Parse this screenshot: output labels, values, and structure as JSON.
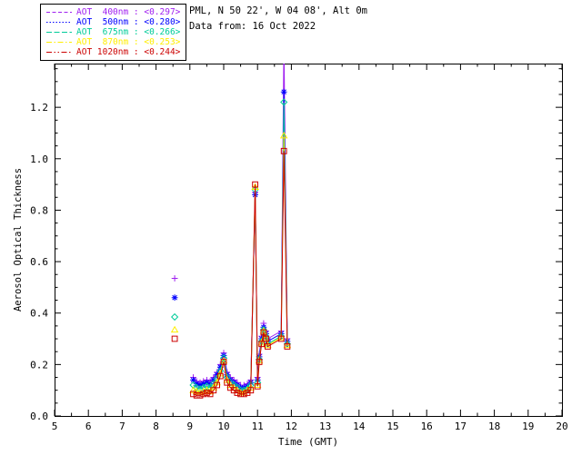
{
  "header": {
    "site": "PML, N 50 22', W 04 08', Alt 0m",
    "data_from": "Data from: 16 Oct 2022"
  },
  "axes": {
    "xlabel": "Time (GMT)",
    "ylabel": "Aerosol Optical Thickness",
    "xlim": [
      5,
      20
    ],
    "ylim": [
      0,
      1.37
    ],
    "xticks": [
      5,
      6,
      7,
      8,
      9,
      10,
      11,
      12,
      13,
      14,
      15,
      16,
      17,
      18,
      19,
      20
    ],
    "yticks": [
      0.0,
      0.2,
      0.4,
      0.6,
      0.8,
      1.0,
      1.2
    ],
    "ytick_labels": [
      "0.0",
      "0.2",
      "0.4",
      "0.6",
      "0.8",
      "1.0",
      "1.2"
    ],
    "grid": "off",
    "legend_position": "top-left"
  },
  "chart_data": {
    "type": "line",
    "title": "",
    "x": [
      9.1,
      9.2,
      9.3,
      9.4,
      9.5,
      9.6,
      9.7,
      9.8,
      9.9,
      10.0,
      10.1,
      10.2,
      10.3,
      10.4,
      10.5,
      10.6,
      10.7,
      10.8,
      10.93,
      11.0,
      11.05,
      11.12,
      11.18,
      11.25,
      11.3,
      11.7,
      11.78,
      11.88
    ],
    "series": [
      {
        "name": "AOT 400nm",
        "legend_label": "AOT  400nm : <0.297>",
        "mean": 0.297,
        "color": "#a020f0",
        "marker": "plus",
        "values": [
          0.15,
          0.135,
          0.13,
          0.135,
          0.14,
          0.135,
          0.15,
          0.17,
          0.2,
          0.245,
          0.17,
          0.15,
          0.14,
          0.13,
          0.12,
          0.12,
          0.125,
          0.14,
          0.87,
          0.15,
          0.24,
          0.31,
          0.36,
          0.33,
          0.3,
          0.33,
          1.45,
          0.3
        ],
        "isolated_point": {
          "x": 8.55,
          "y": 0.535
        }
      },
      {
        "name": "AOT 500nm",
        "legend_label": "AOT  500nm : <0.280>",
        "mean": 0.28,
        "color": "#0000ff",
        "marker": "asterisk",
        "values": [
          0.14,
          0.125,
          0.12,
          0.125,
          0.13,
          0.125,
          0.14,
          0.16,
          0.19,
          0.235,
          0.16,
          0.14,
          0.13,
          0.12,
          0.11,
          0.11,
          0.115,
          0.13,
          0.86,
          0.14,
          0.23,
          0.3,
          0.345,
          0.32,
          0.29,
          0.32,
          1.26,
          0.29
        ],
        "isolated_point": {
          "x": 8.55,
          "y": 0.46
        }
      },
      {
        "name": "AOT 675nm",
        "legend_label": "AOT  675nm : <0.266>",
        "mean": 0.266,
        "color": "#00cc99",
        "marker": "diamond",
        "values": [
          0.12,
          0.11,
          0.105,
          0.11,
          0.115,
          0.11,
          0.125,
          0.145,
          0.175,
          0.225,
          0.15,
          0.13,
          0.12,
          0.11,
          0.1,
          0.1,
          0.105,
          0.12,
          0.88,
          0.13,
          0.22,
          0.29,
          0.335,
          0.31,
          0.28,
          0.31,
          1.22,
          0.28
        ],
        "isolated_point": {
          "x": 8.55,
          "y": 0.385
        }
      },
      {
        "name": "AOT 870nm",
        "legend_label": "AOT  870nm : <0.253>",
        "mean": 0.253,
        "color": "#ffee00",
        "marker": "triangle",
        "values": [
          0.1,
          0.095,
          0.09,
          0.095,
          0.1,
          0.095,
          0.11,
          0.13,
          0.165,
          0.215,
          0.14,
          0.12,
          0.11,
          0.1,
          0.09,
          0.09,
          0.1,
          0.11,
          0.89,
          0.12,
          0.215,
          0.285,
          0.33,
          0.305,
          0.275,
          0.305,
          1.09,
          0.275
        ],
        "isolated_point": {
          "x": 8.55,
          "y": 0.335
        }
      },
      {
        "name": "AOT 1020nm",
        "legend_label": "AOT 1020nm : <0.244>",
        "mean": 0.244,
        "color": "#cc0000",
        "marker": "square",
        "values": [
          0.085,
          0.08,
          0.08,
          0.085,
          0.09,
          0.085,
          0.1,
          0.12,
          0.155,
          0.21,
          0.13,
          0.11,
          0.1,
          0.09,
          0.085,
          0.085,
          0.09,
          0.1,
          0.9,
          0.115,
          0.21,
          0.28,
          0.325,
          0.3,
          0.27,
          0.3,
          1.03,
          0.27
        ],
        "isolated_point": {
          "x": 8.55,
          "y": 0.3
        }
      }
    ]
  }
}
